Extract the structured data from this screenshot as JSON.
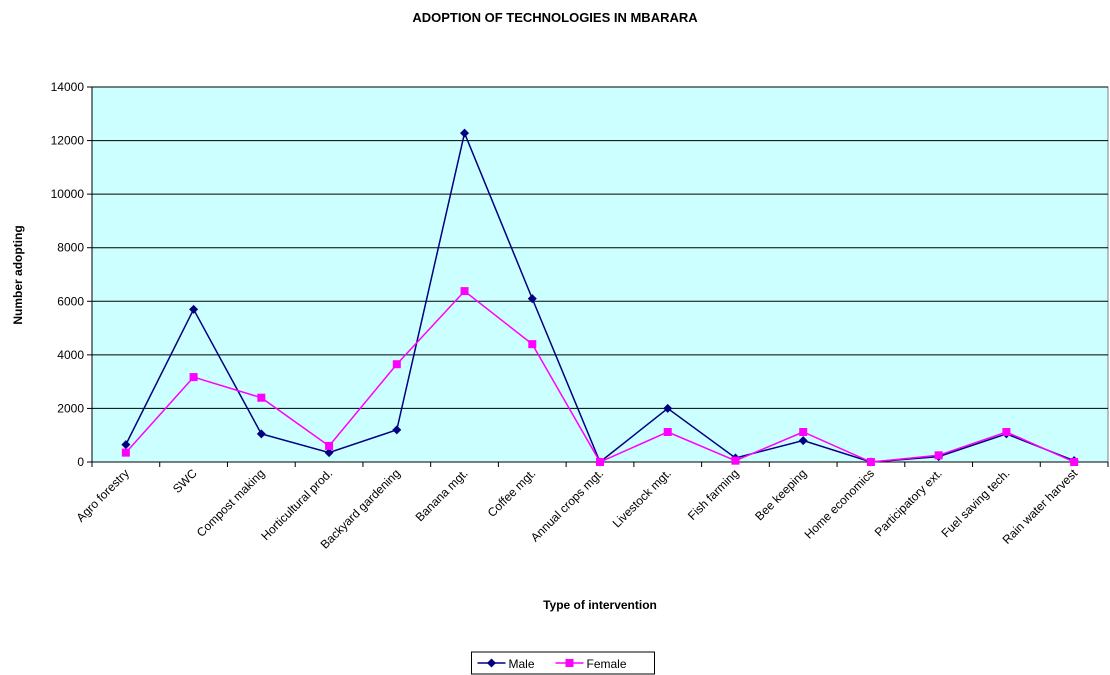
{
  "chart_data": {
    "type": "line",
    "title": "ADOPTION OF TECHNOLOGIES IN MBARARA",
    "x_label": "Type of intervention",
    "y_label": "Number adopting",
    "categories": [
      "Agro forestry",
      "SWC",
      "Compost making",
      "Horticultural prod.",
      "Backyard gardening",
      "Banana mgt.",
      "Coffee mgt.",
      "Annual crops mgt.",
      "Livestock mgt.",
      "Fish farming",
      "Bee keeping",
      "Home economics",
      "Participatory ext.",
      "Fuel saving tech.",
      "Rain water harvest"
    ],
    "series": [
      {
        "name": "Male",
        "color": "#000080",
        "marker": "diamond",
        "values": [
          650,
          5700,
          1050,
          350,
          1200,
          12280,
          6100,
          0,
          2000,
          150,
          800,
          0,
          200,
          1050,
          50
        ]
      },
      {
        "name": "Female",
        "color": "#ff00ff",
        "marker": "square",
        "values": [
          350,
          3170,
          2400,
          600,
          3650,
          6380,
          4400,
          0,
          1120,
          50,
          1120,
          0,
          250,
          1120,
          0
        ]
      }
    ],
    "ylim": [
      0,
      14000
    ],
    "yticks": [
      0,
      2000,
      4000,
      6000,
      8000,
      10000,
      12000,
      14000
    ],
    "grid": true,
    "legend": "bottom",
    "plot_background": "#ccffff"
  }
}
